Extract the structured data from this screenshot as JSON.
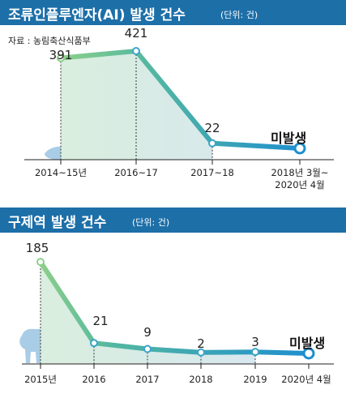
{
  "chart_data": [
    {
      "type": "area",
      "title": "조류인플루엔자(AI) 발생 건수",
      "unit": "(단위: 건)",
      "source": "자료 : 농림축산식품부",
      "categories": [
        "2014~15년",
        "2016~17",
        "2017~18",
        "2018년 3월~ 2020년 4월"
      ],
      "values": [
        391,
        421,
        22,
        0
      ],
      "data_labels": [
        "391",
        "421",
        "22",
        "미발생"
      ],
      "x_labels": [
        [
          "2014~15년"
        ],
        [
          "2016~17"
        ],
        [
          "2017~18"
        ],
        [
          "2018년 3월~",
          "2020년 4월"
        ]
      ]
    },
    {
      "type": "area",
      "title": "구제역 발생 건수",
      "unit": "(단위: 건)",
      "categories": [
        "2015년",
        "2016",
        "2017",
        "2018",
        "2019",
        "2020년 4월"
      ],
      "values": [
        185,
        21,
        9,
        2,
        3,
        0
      ],
      "data_labels": [
        "185",
        "21",
        "9",
        "2",
        "3",
        "미발생"
      ]
    }
  ],
  "colors": {
    "header": "#1d6fa8",
    "line_start": "#8ccf8a",
    "line_end": "#1e8fce",
    "silhouette": "#a9cde6"
  }
}
